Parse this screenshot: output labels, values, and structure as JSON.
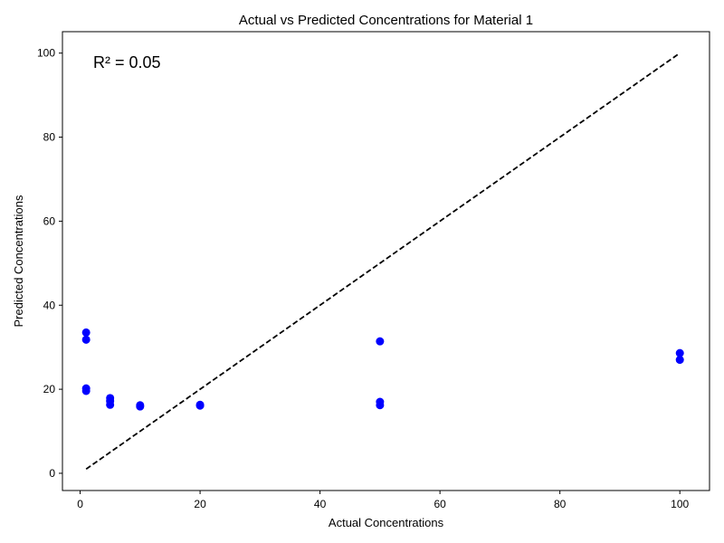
{
  "chart_data": {
    "type": "scatter",
    "title": "Actual vs Predicted Concentrations for Material 1",
    "xlabel": "Actual Concentrations",
    "ylabel": "Predicted Concentrations",
    "annotation": "R² = 0.05",
    "xlim": [
      -2.95,
      104.95
    ],
    "ylim": [
      -4.1,
      105.1
    ],
    "xticks": [
      0,
      20,
      40,
      60,
      80,
      100
    ],
    "yticks": [
      0,
      20,
      40,
      60,
      80,
      100
    ],
    "grid": false,
    "point_color": "#0000ff",
    "reference_line": {
      "x": [
        1,
        100
      ],
      "y": [
        1,
        100
      ],
      "color": "#000000",
      "style": "dashed"
    },
    "points": [
      {
        "x": 1,
        "y": 33.5
      },
      {
        "x": 1,
        "y": 31.8
      },
      {
        "x": 1,
        "y": 20.2
      },
      {
        "x": 1,
        "y": 19.6
      },
      {
        "x": 5,
        "y": 17.9
      },
      {
        "x": 5,
        "y": 17.2
      },
      {
        "x": 5,
        "y": 16.3
      },
      {
        "x": 10,
        "y": 16.2
      },
      {
        "x": 10,
        "y": 15.9
      },
      {
        "x": 20,
        "y": 16.3
      },
      {
        "x": 20,
        "y": 16.1
      },
      {
        "x": 50,
        "y": 31.4
      },
      {
        "x": 50,
        "y": 17.0
      },
      {
        "x": 50,
        "y": 16.2
      },
      {
        "x": 100,
        "y": 28.6
      },
      {
        "x": 100,
        "y": 27.0
      }
    ]
  }
}
